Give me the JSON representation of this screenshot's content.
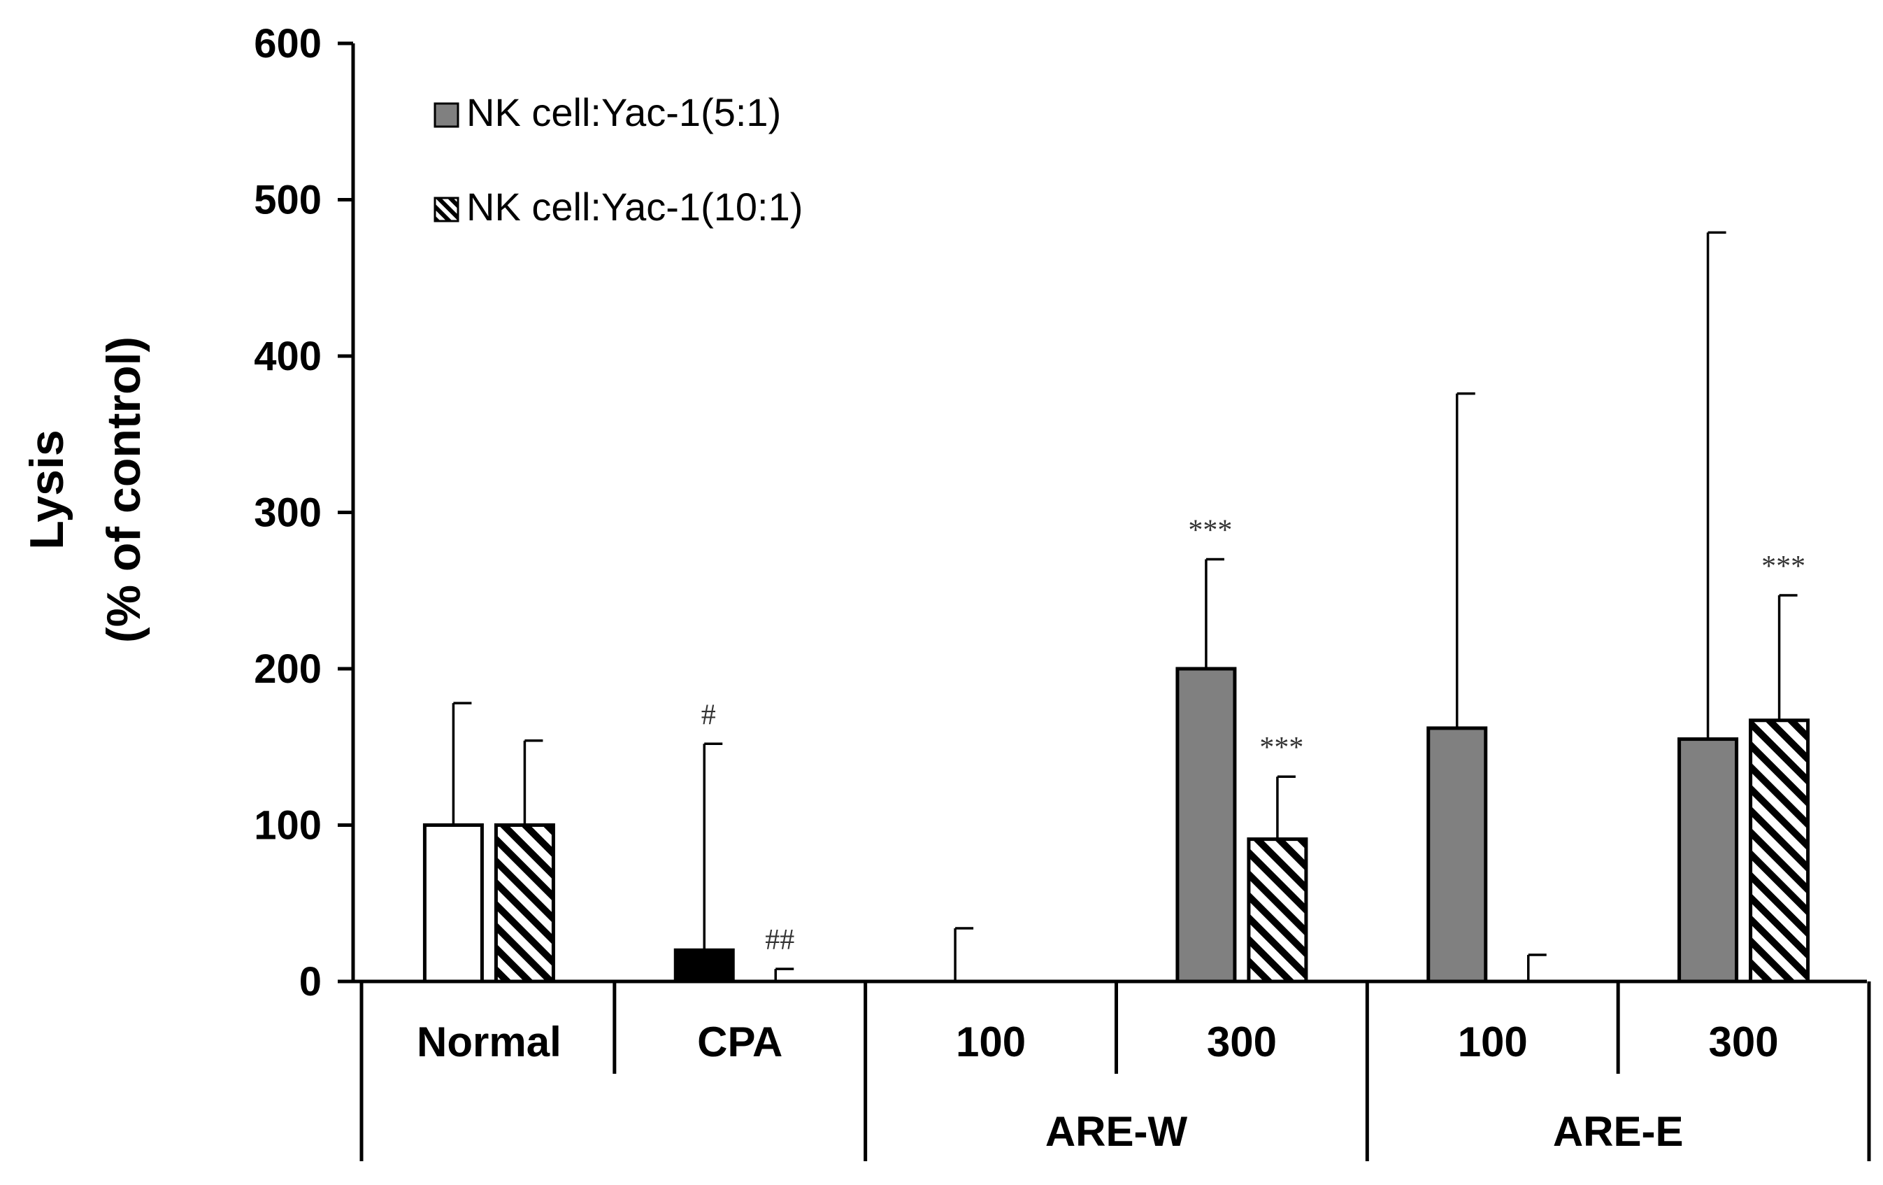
{
  "chart_data": {
    "type": "bar",
    "title": "",
    "xlabel": "",
    "ylabel_lines": [
      "Lysis",
      "(% of control)"
    ],
    "ylim": [
      0,
      600
    ],
    "yticks": [
      0,
      100,
      200,
      300,
      400,
      500,
      600
    ],
    "grid": false,
    "legend_position": "top-left",
    "categories": [
      "Normal",
      "CPA",
      "100",
      "300",
      "100",
      "300"
    ],
    "category_groups": [
      {
        "label": "",
        "span": [
          0,
          1
        ]
      },
      {
        "label": "ARE-W",
        "span": [
          2,
          3
        ]
      },
      {
        "label": "ARE-E",
        "span": [
          4,
          5
        ]
      }
    ],
    "series": [
      {
        "name": "NK cell:Yac-1(5:1)",
        "legend_fill": "#808080",
        "values": [
          100,
          20,
          0,
          200,
          162,
          155
        ],
        "errors": [
          78,
          132,
          34,
          70,
          214,
          324
        ],
        "bar_fills": [
          "#ffffff",
          "#000000",
          "#808080",
          "#808080",
          "#808080",
          "#808080"
        ],
        "annotations": [
          "",
          "#",
          "",
          "***",
          "",
          ""
        ]
      },
      {
        "name": "NK cell:Yac-1(10:1)",
        "legend_fill": "hatch",
        "values": [
          100,
          0,
          0,
          91,
          0,
          167
        ],
        "errors": [
          54,
          8,
          0,
          40,
          17,
          80
        ],
        "bar_fills": [
          "hatch",
          "hatch",
          "hatch",
          "hatch",
          "hatch",
          "hatch"
        ],
        "annotations": [
          "",
          "##",
          "",
          "***",
          "",
          "***"
        ]
      }
    ]
  }
}
